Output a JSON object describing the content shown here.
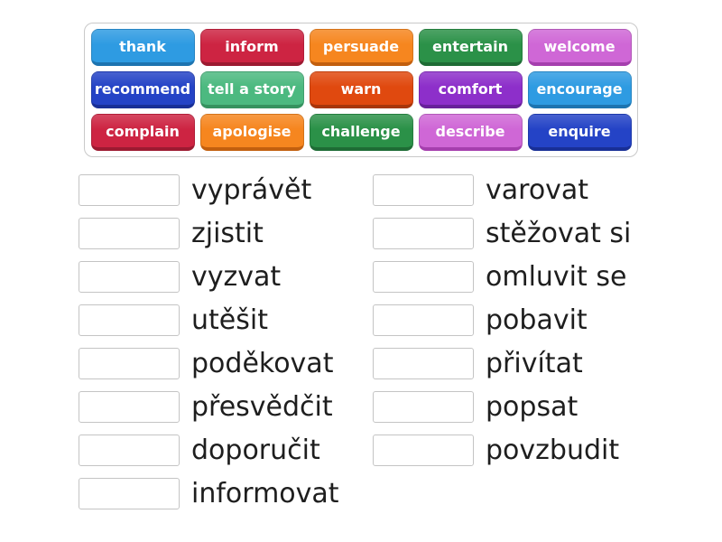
{
  "page": {
    "background": "#ffffff"
  },
  "word_bank": {
    "border_color": "#c9c9c9",
    "tiles": [
      {
        "label": "thank",
        "bg": "#2e9be2",
        "edge": "#1d74b0"
      },
      {
        "label": "inform",
        "bg": "#cd2442",
        "edge": "#9c1a31"
      },
      {
        "label": "persuade",
        "bg": "#f6861f",
        "edge": "#c25f0e"
      },
      {
        "label": "entertain",
        "bg": "#2b9148",
        "edge": "#1e6c35"
      },
      {
        "label": "welcome",
        "bg": "#cf67d6",
        "edge": "#a53fae"
      },
      {
        "label": "recommend",
        "bg": "#2443c6",
        "edge": "#182f96"
      },
      {
        "label": "tell a story",
        "bg": "#4cb980",
        "edge": "#36925f"
      },
      {
        "label": "warn",
        "bg": "#e0490f",
        "edge": "#a8360b"
      },
      {
        "label": "comfort",
        "bg": "#8d2fca",
        "edge": "#68219a"
      },
      {
        "label": "encourage",
        "bg": "#2e9be2",
        "edge": "#1d74b0"
      },
      {
        "label": "complain",
        "bg": "#cd2442",
        "edge": "#9c1a31"
      },
      {
        "label": "apologise",
        "bg": "#f6861f",
        "edge": "#c25f0e"
      },
      {
        "label": "challenge",
        "bg": "#2b9148",
        "edge": "#1e6c35"
      },
      {
        "label": "describe",
        "bg": "#cf67d6",
        "edge": "#a53fae"
      },
      {
        "label": "enquire",
        "bg": "#2443c6",
        "edge": "#182f96"
      }
    ]
  },
  "match_list": {
    "slot_border_color": "#c4c4c4",
    "text_color": "#1e1e1e",
    "left": [
      "vyprávět",
      "zjistit",
      "vyzvat",
      "utěšit",
      "poděkovat",
      "přesvědčit",
      "doporučit",
      "informovat"
    ],
    "right": [
      "varovat",
      "stěžovat si",
      "omluvit se",
      "pobavit",
      "přivítat",
      "popsat",
      "povzbudit"
    ]
  }
}
